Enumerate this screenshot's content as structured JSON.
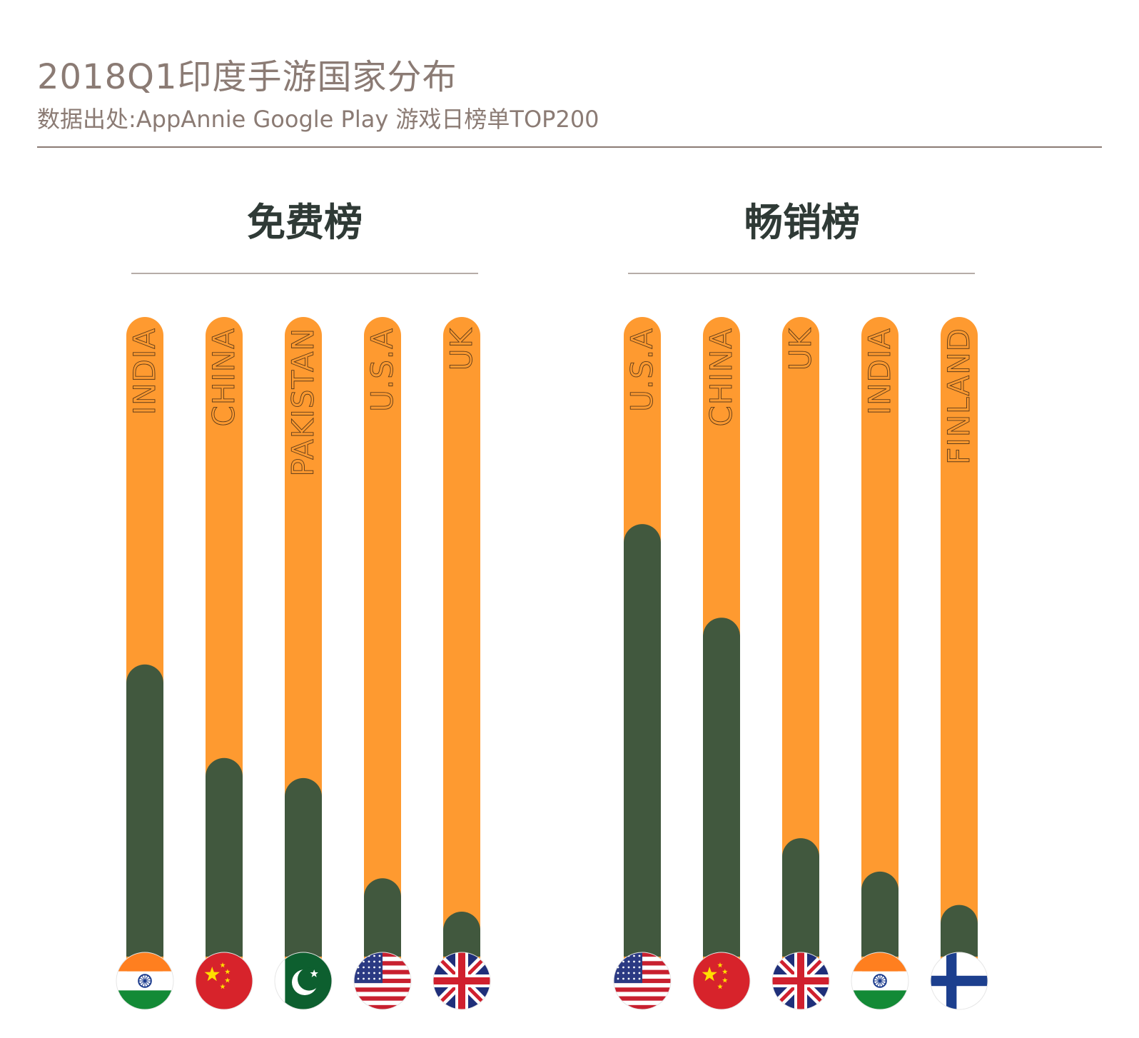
{
  "title": "2018Q1印度手游国家分布",
  "subtitle": "数据出处:AppAnnie Google Play 游戏日榜单TOP200",
  "colors": {
    "track": "#fe9a30",
    "fill": "#41583e",
    "text": "#8b7b74",
    "heading": "#2f3a36",
    "rule": "#8b7b74"
  },
  "chart_data": [
    {
      "type": "bar",
      "title": "免费榜",
      "categories": [
        "INDIA",
        "CHINA",
        "PAKISTAN",
        "U.S.A",
        "UK"
      ],
      "flags": [
        "india-flag-icon",
        "china-flag-icon",
        "pakistan-flag-icon",
        "usa-flag-icon",
        "uk-flag-icon"
      ],
      "values": [
        0.48,
        0.34,
        0.31,
        0.16,
        0.11
      ],
      "ylim": [
        0,
        1
      ]
    },
    {
      "type": "bar",
      "title": "畅销榜",
      "categories": [
        "U.S.A",
        "CHINA",
        "UK",
        "INDIA",
        "FINLAND"
      ],
      "flags": [
        "usa-flag-icon",
        "china-flag-icon",
        "uk-flag-icon",
        "india-flag-icon",
        "finland-flag-icon"
      ],
      "values": [
        0.69,
        0.55,
        0.22,
        0.17,
        0.12
      ],
      "ylim": [
        0,
        1
      ]
    }
  ]
}
